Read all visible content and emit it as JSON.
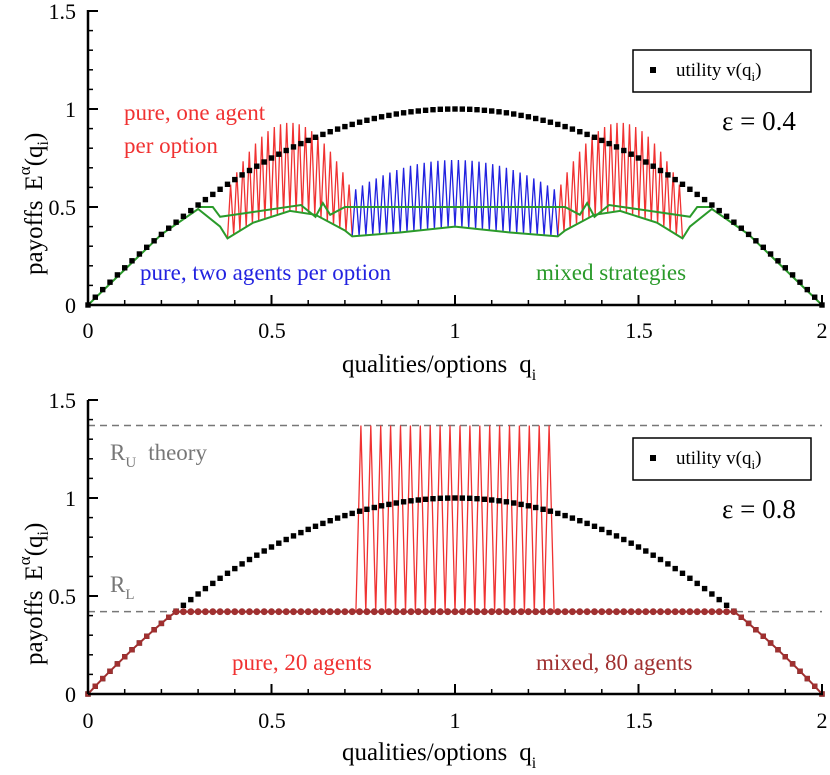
{
  "chart_data": [
    {
      "type": "line",
      "panel": "top",
      "xlabel": "qualities/options",
      "xlabel_sub": "q",
      "xlabel_sub_index": "i",
      "ylabel": "payoffs",
      "ylabel_math": "E",
      "ylabel_sup": "α",
      "ylabel_arg": "(q",
      "ylabel_arg_index": "i",
      "ylabel_close": ")",
      "xlim": [
        0,
        2
      ],
      "ylim": [
        0,
        1.5
      ],
      "x_ticks": [
        0,
        0.5,
        1,
        1.5,
        2
      ],
      "x_tick_labels": [
        "0",
        "0.5",
        "1",
        "1.5",
        "2"
      ],
      "y_ticks": [
        0,
        0.5,
        1,
        1.5
      ],
      "y_tick_labels": [
        "0",
        "0.5",
        "1",
        "1.5"
      ],
      "epsilon_label": "ε = 0.4",
      "legend": {
        "label": "utility  v(q",
        "label_index": "i",
        "label_close": ")",
        "position": "top-right"
      },
      "annotations": {
        "pure_one_line1": "pure, one agent",
        "pure_one_line2": "per option",
        "pure_two": "pure, two agents per option",
        "mixed": "mixed strategies"
      },
      "colors": {
        "utility": "#000000",
        "pure_one": "#f03232",
        "pure_two": "#2222e0",
        "mixed": "#2a9a2a"
      },
      "series": [
        {
          "name": "utility v(q) = q(2 - q)",
          "kind": "markers",
          "x_start": 0,
          "x_end": 2,
          "count": 101
        },
        {
          "name": "pure, one agent per option",
          "kind": "zigzag",
          "segments": [
            [
              0.38,
              0.72
            ],
            [
              1.28,
              1.62
            ]
          ],
          "teeth": 20,
          "peak_range": [
            0.58,
            0.93
          ],
          "base": "mixed"
        },
        {
          "name": "pure, two agents per option",
          "kind": "zigzag",
          "segments": [
            [
              0.72,
              1.28
            ]
          ],
          "teeth": 30,
          "peak_range": [
            0.58,
            0.74
          ],
          "base": "mixed"
        },
        {
          "name": "mixed strategies",
          "kind": "line",
          "x": [
            0.0,
            0.2,
            0.3,
            0.36,
            0.38,
            0.45,
            0.55,
            0.62,
            0.7,
            0.72,
            0.85,
            1.0,
            1.15,
            1.28,
            1.3,
            1.38,
            1.45,
            1.55,
            1.62,
            1.64,
            1.7,
            1.8,
            2.0
          ],
          "y": [
            0.0,
            0.36,
            0.49,
            0.4,
            0.34,
            0.42,
            0.48,
            0.46,
            0.38,
            0.35,
            0.37,
            0.4,
            0.37,
            0.35,
            0.38,
            0.46,
            0.48,
            0.42,
            0.34,
            0.4,
            0.49,
            0.36,
            0.0
          ]
        },
        {
          "name": "mixed strategies (upper branch)",
          "kind": "line",
          "x": [
            0.3,
            0.34,
            0.36,
            0.58,
            0.62,
            0.64,
            0.66,
            0.7,
            1.3,
            1.34,
            1.36,
            1.38,
            1.42,
            1.64,
            1.66,
            1.7
          ],
          "y": [
            0.5,
            0.5,
            0.45,
            0.51,
            0.45,
            0.52,
            0.46,
            0.5,
            0.5,
            0.46,
            0.52,
            0.45,
            0.51,
            0.45,
            0.5,
            0.5
          ]
        }
      ]
    },
    {
      "type": "line",
      "panel": "bottom",
      "xlabel": "qualities/options",
      "xlabel_sub": "q",
      "xlabel_sub_index": "i",
      "ylabel": "payoffs",
      "ylabel_math": "E",
      "ylabel_sup": "α",
      "ylabel_arg": "(q",
      "ylabel_arg_index": "i",
      "ylabel_close": ")",
      "xlim": [
        0,
        2
      ],
      "ylim": [
        0,
        1.5
      ],
      "x_ticks": [
        0,
        0.5,
        1,
        1.5,
        2
      ],
      "x_tick_labels": [
        "0",
        "0.5",
        "1",
        "1.5",
        "2"
      ],
      "y_ticks": [
        0,
        0.5,
        1,
        1.5
      ],
      "y_tick_labels": [
        "0",
        "0.5",
        "1",
        "1.5"
      ],
      "epsilon_label": "ε = 0.8",
      "legend": {
        "label": "utility  v(q",
        "label_index": "i",
        "label_close": ")",
        "position": "top-right"
      },
      "annotations": {
        "ru_label": "R",
        "ru_sub": "U",
        "ru_theory": "theory",
        "rl_label": "R",
        "rl_sub": "L",
        "pure20": "pure, 20 agents",
        "mixed80": "mixed, 80 agents"
      },
      "reference_lines": {
        "R_U": 1.37,
        "R_L": 0.42
      },
      "colors": {
        "utility": "#000000",
        "pure20": "#f03232",
        "mixed80": "#a03030",
        "reference": "#777777"
      },
      "series": [
        {
          "name": "utility v(q) = q(2 - q)",
          "kind": "markers",
          "x_start": 0,
          "x_end": 2,
          "count": 101
        },
        {
          "name": "pure, 20 agents",
          "kind": "zigzag",
          "segments": [
            [
              0.73,
              1.27
            ]
          ],
          "teeth": 20,
          "low": 0.42,
          "high": 1.37
        },
        {
          "name": "mixed, 80 agents",
          "kind": "dots",
          "rule": "min(v(q), R_L)",
          "x_start": 0,
          "x_end": 2,
          "count": 101
        }
      ]
    }
  ]
}
